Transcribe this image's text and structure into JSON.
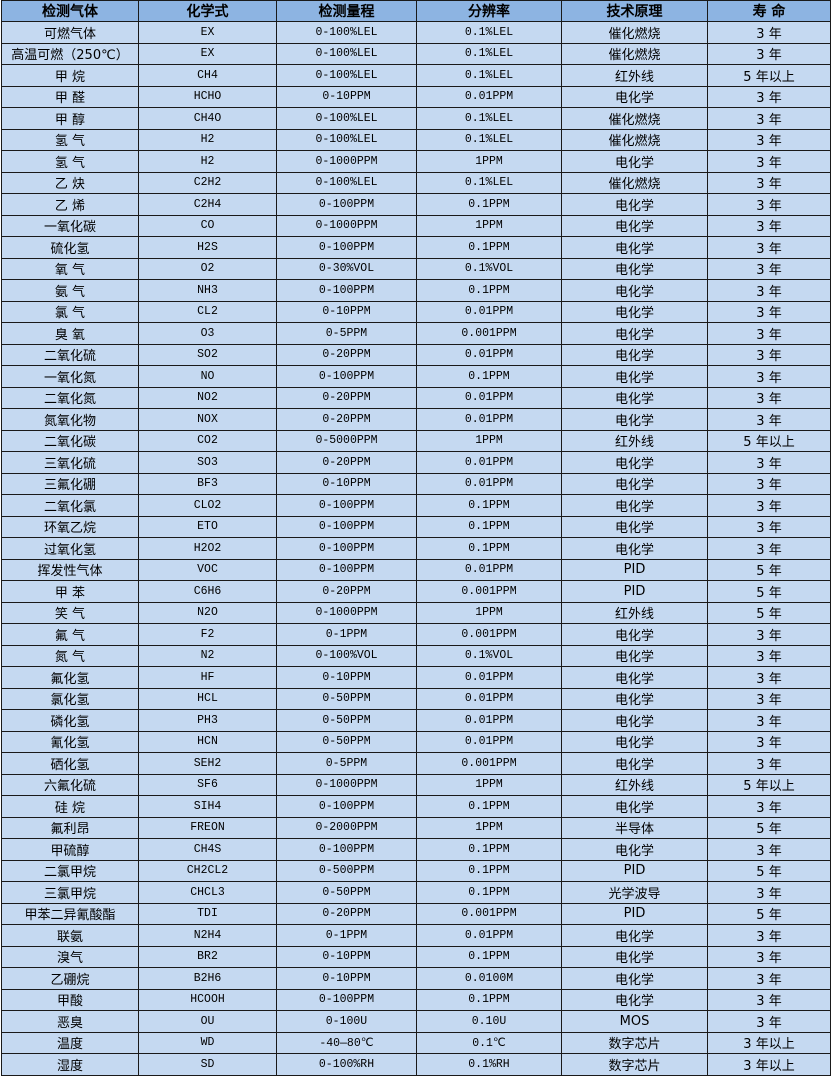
{
  "table": {
    "headers": [
      "检测气体",
      "化学式",
      "检测量程",
      "分辨率",
      "技术原理",
      "寿 命"
    ],
    "rows": [
      [
        "可燃气体",
        "EX",
        "0-100%LEL",
        "0.1%LEL",
        "催化燃烧",
        "3 年"
      ],
      [
        "高温可燃（250℃）",
        "EX",
        "0-100%LEL",
        "0.1%LEL",
        "催化燃烧",
        "3 年"
      ],
      [
        "甲 烷",
        "CH4",
        "0-100%LEL",
        "0.1%LEL",
        "红外线",
        "5 年以上"
      ],
      [
        "甲 醛",
        "HCHO",
        "0-10PPM",
        "0.01PPM",
        "电化学",
        "3 年"
      ],
      [
        "甲 醇",
        "CH4O",
        "0-100%LEL",
        "0.1%LEL",
        "催化燃烧",
        "3 年"
      ],
      [
        "氢 气",
        "H2",
        "0-100%LEL",
        "0.1%LEL",
        "催化燃烧",
        "3 年"
      ],
      [
        "氢 气",
        "H2",
        "0-1000PPM",
        "1PPM",
        "电化学",
        "3 年"
      ],
      [
        "乙 炔",
        "C2H2",
        "0-100%LEL",
        "0.1%LEL",
        "催化燃烧",
        "3 年"
      ],
      [
        "乙 烯",
        "C2H4",
        "0-100PPM",
        "0.1PPM",
        "电化学",
        "3 年"
      ],
      [
        "一氧化碳",
        "CO",
        "0-1000PPM",
        "1PPM",
        "电化学",
        "3 年"
      ],
      [
        "硫化氢",
        "H2S",
        "0-100PPM",
        "0.1PPM",
        "电化学",
        "3 年"
      ],
      [
        "氧 气",
        "O2",
        "0-30%VOL",
        "0.1%VOL",
        "电化学",
        "3 年"
      ],
      [
        "氨 气",
        "NH3",
        "0-100PPM",
        "0.1PPM",
        "电化学",
        "3 年"
      ],
      [
        "氯 气",
        "CL2",
        "0-10PPM",
        "0.01PPM",
        "电化学",
        "3 年"
      ],
      [
        "臭 氧",
        "O3",
        "0-5PPM",
        "0.001PPM",
        "电化学",
        "3 年"
      ],
      [
        "二氧化硫",
        "SO2",
        "0-20PPM",
        "0.01PPM",
        "电化学",
        "3 年"
      ],
      [
        "一氧化氮",
        "NO",
        "0-100PPM",
        "0.1PPM",
        "电化学",
        "3 年"
      ],
      [
        "二氧化氮",
        "NO2",
        "0-20PPM",
        "0.01PPM",
        "电化学",
        "3 年"
      ],
      [
        "氮氧化物",
        "NOX",
        "0-20PPM",
        "0.01PPM",
        "电化学",
        "3 年"
      ],
      [
        "二氧化碳",
        "CO2",
        "0-5000PPM",
        "1PPM",
        "红外线",
        "5 年以上"
      ],
      [
        "三氧化硫",
        "SO3",
        "0-20PPM",
        "0.01PPM",
        "电化学",
        "3 年"
      ],
      [
        "三氟化硼",
        "BF3",
        "0-10PPM",
        "0.01PPM",
        "电化学",
        "3 年"
      ],
      [
        "二氧化氯",
        "CLO2",
        "0-100PPM",
        "0.1PPM",
        "电化学",
        "3 年"
      ],
      [
        "环氧乙烷",
        "ETO",
        "0-100PPM",
        "0.1PPM",
        "电化学",
        "3 年"
      ],
      [
        "过氧化氢",
        "H2O2",
        "0-100PPM",
        "0.1PPM",
        "电化学",
        "3 年"
      ],
      [
        "挥发性气体",
        "VOC",
        "0-100PPM",
        "0.01PPM",
        "PID",
        "5 年"
      ],
      [
        "甲 苯",
        "C6H6",
        "0-20PPM",
        "0.001PPM",
        "PID",
        "5 年"
      ],
      [
        "笑 气",
        "N2O",
        "0-1000PPM",
        "1PPM",
        "红外线",
        "5 年"
      ],
      [
        "氟 气",
        "F2",
        "0-1PPM",
        "0.001PPM",
        "电化学",
        "3 年"
      ],
      [
        "氮 气",
        "N2",
        "0-100%VOL",
        "0.1%VOL",
        "电化学",
        "3 年"
      ],
      [
        "氟化氢",
        "HF",
        "0-10PPM",
        "0.01PPM",
        "电化学",
        "3 年"
      ],
      [
        "氯化氢",
        "HCL",
        "0-50PPM",
        "0.01PPM",
        "电化学",
        "3 年"
      ],
      [
        "磷化氢",
        "PH3",
        "0-50PPM",
        "0.01PPM",
        "电化学",
        "3 年"
      ],
      [
        "氰化氢",
        "HCN",
        "0-50PPM",
        "0.01PPM",
        "电化学",
        "3 年"
      ],
      [
        "硒化氢",
        "SEH2",
        "0-5PPM",
        "0.001PPM",
        "电化学",
        "3 年"
      ],
      [
        "六氟化硫",
        "SF6",
        "0-1000PPM",
        "1PPM",
        "红外线",
        "5 年以上"
      ],
      [
        "硅 烷",
        "SIH4",
        "0-100PPM",
        "0.1PPM",
        "电化学",
        "3 年"
      ],
      [
        "氟利昂",
        "FREON",
        "0-2000PPM",
        "1PPM",
        "半导体",
        "5 年"
      ],
      [
        "甲硫醇",
        "CH4S",
        "0-100PPM",
        "0.1PPM",
        "电化学",
        "3 年"
      ],
      [
        "二氯甲烷",
        "CH2CL2",
        "0-500PPM",
        "0.1PPM",
        "PID",
        "5 年"
      ],
      [
        "三氯甲烷",
        "CHCL3",
        "0-50PPM",
        "0.1PPM",
        "光学波导",
        "3 年"
      ],
      [
        "甲苯二异氰酸酯",
        "TDI",
        "0-20PPM",
        "0.001PPM",
        "PID",
        "5 年"
      ],
      [
        "联氨",
        "N2H4",
        "0-1PPM",
        "0.01PPM",
        "电化学",
        "3 年"
      ],
      [
        "溴气",
        "BR2",
        "0-10PPM",
        "0.1PPM",
        "电化学",
        "3 年"
      ],
      [
        "乙硼烷",
        "B2H6",
        "0-10PPM",
        "0.0100M",
        "电化学",
        "3 年"
      ],
      [
        "甲酸",
        "HCOOH",
        "0-100PPM",
        "0.1PPM",
        "电化学",
        "3 年"
      ],
      [
        "恶臭",
        "OU",
        "0-100U",
        "0.10U",
        "MOS",
        "3 年"
      ],
      [
        "温度",
        "WD",
        "-40—80℃",
        "0.1℃",
        "数字芯片",
        "3 年以上"
      ],
      [
        "湿度",
        "SD",
        "0-100%RH",
        "0.1%RH",
        "数字芯片",
        "3 年以上"
      ]
    ]
  },
  "colors": {
    "header_bg": "#8DB4E2",
    "cell_bg": "#C5D9F1",
    "border": "#1a1a1a"
  }
}
